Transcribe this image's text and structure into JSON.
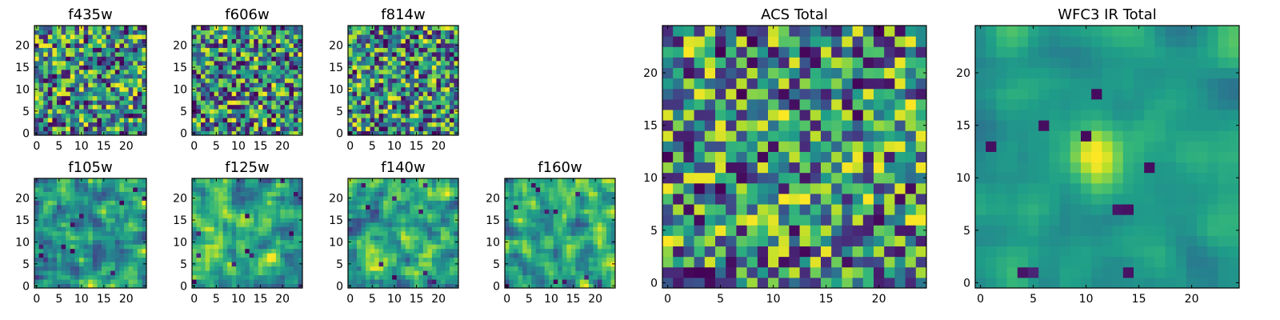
{
  "colors": {
    "colormap": "viridis",
    "frame": "#000000",
    "background": "#ffffff"
  },
  "chart_data": [
    {
      "type": "heatmap",
      "title": "f435w",
      "grid": false,
      "size": 25,
      "xticks": [
        "0",
        "5",
        "10",
        "15",
        "20"
      ],
      "yticks": [
        "0",
        "5",
        "10",
        "15",
        "20"
      ],
      "texture": "noise",
      "seed": 11
    },
    {
      "type": "heatmap",
      "title": "f606w",
      "grid": false,
      "size": 25,
      "xticks": [
        "0",
        "5",
        "10",
        "15",
        "20"
      ],
      "yticks": [
        "0",
        "5",
        "10",
        "15",
        "20"
      ],
      "texture": "noise",
      "seed": 23
    },
    {
      "type": "heatmap",
      "title": "f814w",
      "grid": false,
      "size": 25,
      "xticks": [
        "0",
        "5",
        "10",
        "15",
        "20"
      ],
      "yticks": [
        "0",
        "5",
        "10",
        "15",
        "20"
      ],
      "texture": "noise",
      "seed": 37
    },
    {
      "type": "heatmap",
      "title": "f105w",
      "grid": false,
      "size": 25,
      "xticks": [
        "0",
        "5",
        "10",
        "15",
        "20"
      ],
      "yticks": [
        "0",
        "5",
        "10",
        "15",
        "20"
      ],
      "texture": "smooth",
      "seed": 41
    },
    {
      "type": "heatmap",
      "title": "f125w",
      "grid": false,
      "size": 25,
      "xticks": [
        "0",
        "5",
        "10",
        "15",
        "20"
      ],
      "yticks": [
        "0",
        "5",
        "10",
        "15",
        "20"
      ],
      "texture": "smooth",
      "seed": 53
    },
    {
      "type": "heatmap",
      "title": "f140w",
      "grid": false,
      "size": 25,
      "xticks": [
        "0",
        "5",
        "10",
        "15",
        "20"
      ],
      "yticks": [
        "0",
        "5",
        "10",
        "15",
        "20"
      ],
      "texture": "smooth",
      "seed": 67
    },
    {
      "type": "heatmap",
      "title": "f160w",
      "grid": false,
      "size": 25,
      "xticks": [
        "0",
        "5",
        "10",
        "15",
        "20"
      ],
      "yticks": [
        "0",
        "5",
        "10",
        "15",
        "20"
      ],
      "texture": "smooth",
      "seed": 79
    },
    {
      "type": "heatmap",
      "title": "ACS Total",
      "grid": false,
      "size": 25,
      "xticks": [
        "0",
        "5",
        "10",
        "15",
        "20"
      ],
      "yticks": [
        "0",
        "5",
        "10",
        "15",
        "20"
      ],
      "texture": "noise",
      "seed": 97
    },
    {
      "type": "heatmap",
      "title": "WFC3 IR Total",
      "grid": false,
      "size": 25,
      "xticks": [
        "0",
        "5",
        "10",
        "15",
        "20"
      ],
      "yticks": [
        "0",
        "5",
        "10",
        "15",
        "20"
      ],
      "texture": "peak",
      "seed": 113,
      "peak": [
        11,
        12
      ]
    }
  ]
}
